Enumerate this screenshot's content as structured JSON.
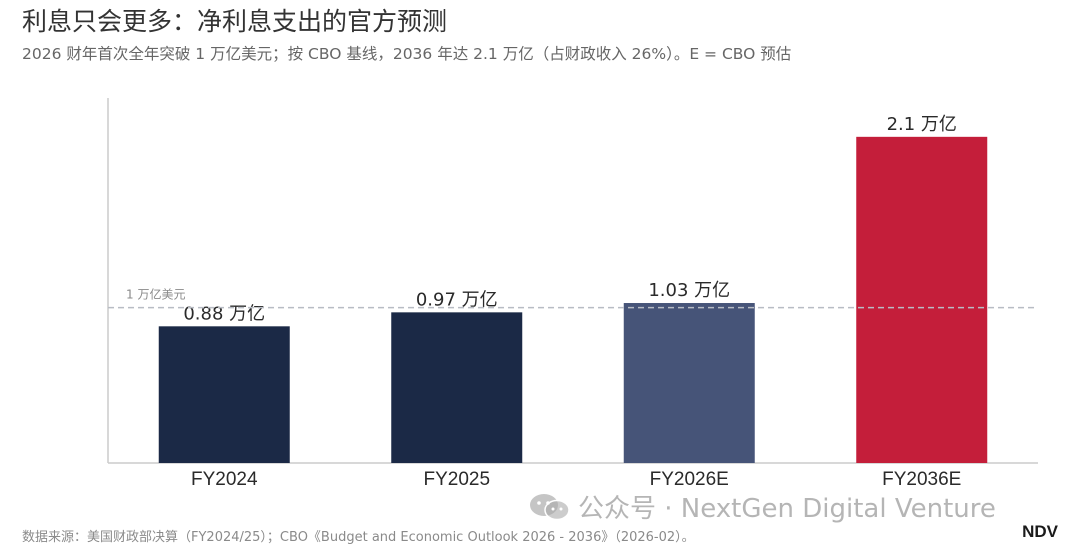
{
  "title": "利息只会更多：净利息支出的官方预测",
  "subtitle": "2026 财年首次全年突破 1 万亿美元；按 CBO 基线，2036 年达 2.1 万亿（占财政收入 26%）。E = CBO 预估",
  "source": "数据来源：美国财政部决算（FY2024/25）；CBO《Budget and Economic Outlook 2026 - 2036》（2026-02）。",
  "watermark": "公众号 · NextGen Digital Venture",
  "brand": "NDV",
  "chart_data": {
    "type": "bar",
    "categories": [
      "FY2024",
      "FY2025",
      "FY2026E",
      "FY2036E"
    ],
    "values": [
      0.88,
      0.97,
      1.03,
      2.1
    ],
    "data_labels": [
      "0.88 万亿",
      "0.97 万亿",
      "1.03 万亿",
      "2.1 万亿"
    ],
    "colors": [
      "#1b2946",
      "#1b2946",
      "#465478",
      "#c41e3a"
    ],
    "ylim": [
      0,
      2.35
    ],
    "reference_line": {
      "value": 1.0,
      "label": "1 万亿美元",
      "color": "#b8bcc4",
      "style": "dashed"
    },
    "grid": false,
    "axis_color": "#cccccc"
  }
}
